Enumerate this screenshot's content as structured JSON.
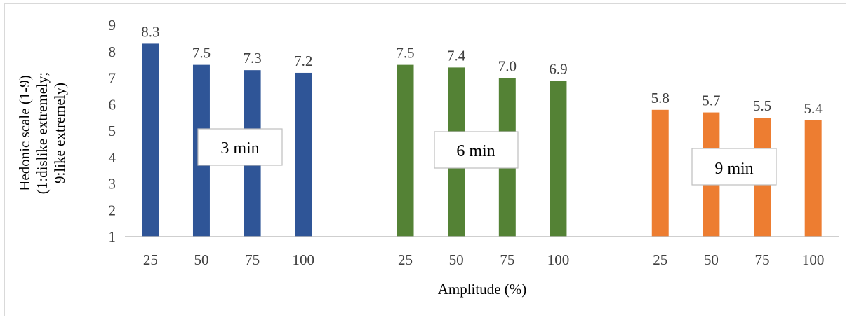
{
  "chart_data": {
    "type": "bar",
    "title": "",
    "xlabel": "Amplitude (%)",
    "ylabel": [
      "Hedonic scale (1-9)",
      "(1:dislike extremely;",
      "9:like extremely)"
    ],
    "ylim": [
      1,
      9
    ],
    "yticks": [
      "1",
      "2",
      "3",
      "4",
      "5",
      "6",
      "7",
      "8",
      "9"
    ],
    "grid": false,
    "legend": "none",
    "groups": [
      {
        "name": "3 min",
        "color": "#2f5597",
        "categories": [
          "25",
          "50",
          "75",
          "100"
        ],
        "values": [
          8.3,
          7.5,
          7.3,
          7.2
        ],
        "labels": [
          "8.3",
          "7.5",
          "7.3",
          "7.2"
        ]
      },
      {
        "name": "6 min",
        "color": "#548235",
        "categories": [
          "25",
          "50",
          "75",
          "100"
        ],
        "values": [
          7.5,
          7.4,
          7.0,
          6.9
        ],
        "labels": [
          "7.5",
          "7.4",
          "7.0",
          "6.9"
        ]
      },
      {
        "name": "9 min",
        "color": "#ed7d31",
        "categories": [
          "25",
          "50",
          "75",
          "100"
        ],
        "values": [
          5.8,
          5.7,
          5.5,
          5.4
        ],
        "labels": [
          "5.8",
          "5.7",
          "5.5",
          "5.4"
        ]
      }
    ]
  }
}
